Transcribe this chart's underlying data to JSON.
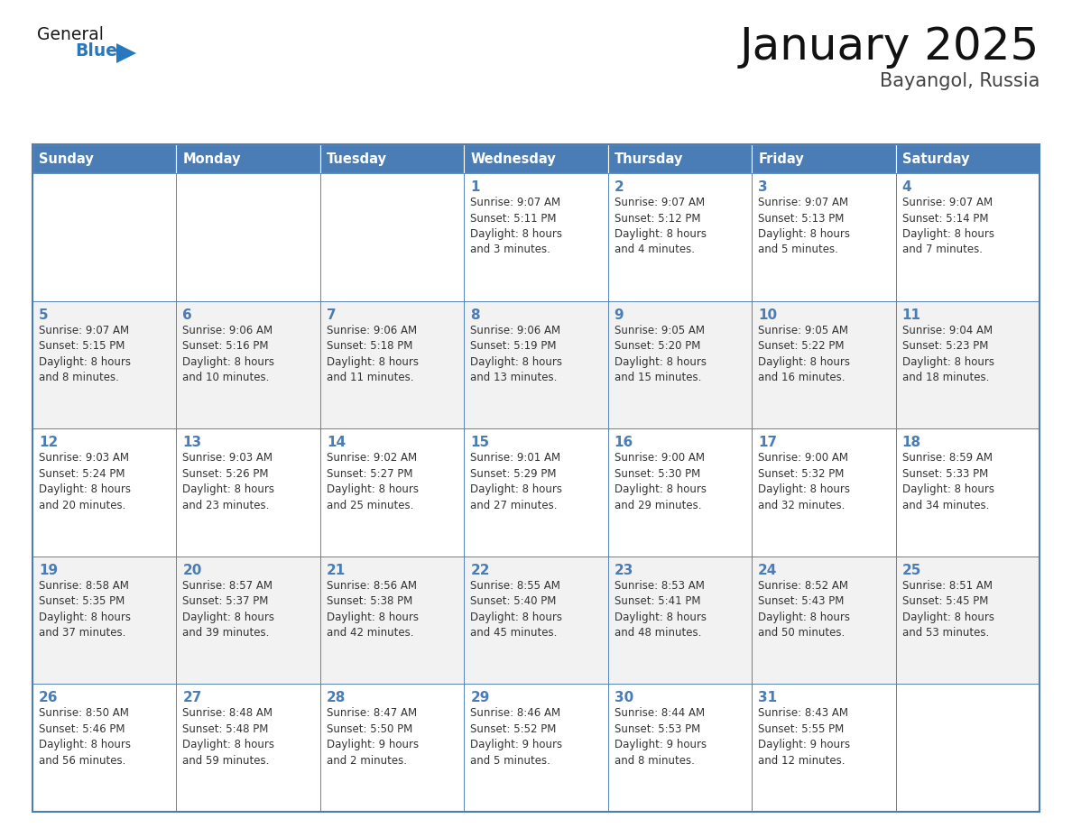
{
  "title": "January 2025",
  "subtitle": "Bayangol, Russia",
  "days_of_week": [
    "Sunday",
    "Monday",
    "Tuesday",
    "Wednesday",
    "Thursday",
    "Friday",
    "Saturday"
  ],
  "header_bg": "#4a7cb5",
  "header_text": "#ffffff",
  "cell_bg_white": "#ffffff",
  "cell_bg_gray": "#f2f2f2",
  "border_color": "#4a7cb5",
  "day_number_color": "#4a7cb5",
  "text_color": "#333333",
  "logo_general_color": "#1a1a1a",
  "logo_blue_color": "#2878c0",
  "calendar_data": [
    [
      {
        "day": null,
        "info": ""
      },
      {
        "day": null,
        "info": ""
      },
      {
        "day": null,
        "info": ""
      },
      {
        "day": 1,
        "info": "Sunrise: 9:07 AM\nSunset: 5:11 PM\nDaylight: 8 hours\nand 3 minutes."
      },
      {
        "day": 2,
        "info": "Sunrise: 9:07 AM\nSunset: 5:12 PM\nDaylight: 8 hours\nand 4 minutes."
      },
      {
        "day": 3,
        "info": "Sunrise: 9:07 AM\nSunset: 5:13 PM\nDaylight: 8 hours\nand 5 minutes."
      },
      {
        "day": 4,
        "info": "Sunrise: 9:07 AM\nSunset: 5:14 PM\nDaylight: 8 hours\nand 7 minutes."
      }
    ],
    [
      {
        "day": 5,
        "info": "Sunrise: 9:07 AM\nSunset: 5:15 PM\nDaylight: 8 hours\nand 8 minutes."
      },
      {
        "day": 6,
        "info": "Sunrise: 9:06 AM\nSunset: 5:16 PM\nDaylight: 8 hours\nand 10 minutes."
      },
      {
        "day": 7,
        "info": "Sunrise: 9:06 AM\nSunset: 5:18 PM\nDaylight: 8 hours\nand 11 minutes."
      },
      {
        "day": 8,
        "info": "Sunrise: 9:06 AM\nSunset: 5:19 PM\nDaylight: 8 hours\nand 13 minutes."
      },
      {
        "day": 9,
        "info": "Sunrise: 9:05 AM\nSunset: 5:20 PM\nDaylight: 8 hours\nand 15 minutes."
      },
      {
        "day": 10,
        "info": "Sunrise: 9:05 AM\nSunset: 5:22 PM\nDaylight: 8 hours\nand 16 minutes."
      },
      {
        "day": 11,
        "info": "Sunrise: 9:04 AM\nSunset: 5:23 PM\nDaylight: 8 hours\nand 18 minutes."
      }
    ],
    [
      {
        "day": 12,
        "info": "Sunrise: 9:03 AM\nSunset: 5:24 PM\nDaylight: 8 hours\nand 20 minutes."
      },
      {
        "day": 13,
        "info": "Sunrise: 9:03 AM\nSunset: 5:26 PM\nDaylight: 8 hours\nand 23 minutes."
      },
      {
        "day": 14,
        "info": "Sunrise: 9:02 AM\nSunset: 5:27 PM\nDaylight: 8 hours\nand 25 minutes."
      },
      {
        "day": 15,
        "info": "Sunrise: 9:01 AM\nSunset: 5:29 PM\nDaylight: 8 hours\nand 27 minutes."
      },
      {
        "day": 16,
        "info": "Sunrise: 9:00 AM\nSunset: 5:30 PM\nDaylight: 8 hours\nand 29 minutes."
      },
      {
        "day": 17,
        "info": "Sunrise: 9:00 AM\nSunset: 5:32 PM\nDaylight: 8 hours\nand 32 minutes."
      },
      {
        "day": 18,
        "info": "Sunrise: 8:59 AM\nSunset: 5:33 PM\nDaylight: 8 hours\nand 34 minutes."
      }
    ],
    [
      {
        "day": 19,
        "info": "Sunrise: 8:58 AM\nSunset: 5:35 PM\nDaylight: 8 hours\nand 37 minutes."
      },
      {
        "day": 20,
        "info": "Sunrise: 8:57 AM\nSunset: 5:37 PM\nDaylight: 8 hours\nand 39 minutes."
      },
      {
        "day": 21,
        "info": "Sunrise: 8:56 AM\nSunset: 5:38 PM\nDaylight: 8 hours\nand 42 minutes."
      },
      {
        "day": 22,
        "info": "Sunrise: 8:55 AM\nSunset: 5:40 PM\nDaylight: 8 hours\nand 45 minutes."
      },
      {
        "day": 23,
        "info": "Sunrise: 8:53 AM\nSunset: 5:41 PM\nDaylight: 8 hours\nand 48 minutes."
      },
      {
        "day": 24,
        "info": "Sunrise: 8:52 AM\nSunset: 5:43 PM\nDaylight: 8 hours\nand 50 minutes."
      },
      {
        "day": 25,
        "info": "Sunrise: 8:51 AM\nSunset: 5:45 PM\nDaylight: 8 hours\nand 53 minutes."
      }
    ],
    [
      {
        "day": 26,
        "info": "Sunrise: 8:50 AM\nSunset: 5:46 PM\nDaylight: 8 hours\nand 56 minutes."
      },
      {
        "day": 27,
        "info": "Sunrise: 8:48 AM\nSunset: 5:48 PM\nDaylight: 8 hours\nand 59 minutes."
      },
      {
        "day": 28,
        "info": "Sunrise: 8:47 AM\nSunset: 5:50 PM\nDaylight: 9 hours\nand 2 minutes."
      },
      {
        "day": 29,
        "info": "Sunrise: 8:46 AM\nSunset: 5:52 PM\nDaylight: 9 hours\nand 5 minutes."
      },
      {
        "day": 30,
        "info": "Sunrise: 8:44 AM\nSunset: 5:53 PM\nDaylight: 9 hours\nand 8 minutes."
      },
      {
        "day": 31,
        "info": "Sunrise: 8:43 AM\nSunset: 5:55 PM\nDaylight: 9 hours\nand 12 minutes."
      },
      {
        "day": null,
        "info": ""
      }
    ]
  ]
}
